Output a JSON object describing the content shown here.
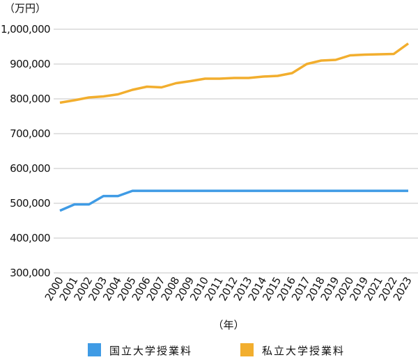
{
  "chart_data": {
    "type": "line",
    "unit_label": "（万円）",
    "xlabel": "（年）",
    "ylabel": "",
    "categories": [
      "2000",
      "2001",
      "2002",
      "2003",
      "2004",
      "2005",
      "2006",
      "2007",
      "2008",
      "2009",
      "2010",
      "2011",
      "2012",
      "2013",
      "2014",
      "2015",
      "2016",
      "2017",
      "2018",
      "2019",
      "2020",
      "2019",
      "2021",
      "2022",
      "2023"
    ],
    "ylim": [
      300000,
      1000000
    ],
    "yticks": [
      300000,
      400000,
      500000,
      600000,
      700000,
      800000,
      900000,
      1000000
    ],
    "ytick_labels": [
      "300,000",
      "400,000",
      "500,000",
      "600,000",
      "700,000",
      "800,000",
      "900,000",
      "1,000,000"
    ],
    "grid": true,
    "legend_position": "bottom",
    "series": [
      {
        "name": "国立大学授業料",
        "color": "#3f9be5",
        "values": [
          478800,
          496800,
          496800,
          520800,
          520800,
          535800,
          535800,
          535800,
          535800,
          535800,
          535800,
          535800,
          535800,
          535800,
          535800,
          535800,
          535800,
          535800,
          535800,
          535800,
          535800,
          535800,
          535800,
          535800,
          535800
        ]
      },
      {
        "name": "私立大学授業料",
        "color": "#f2ae2e",
        "values": [
          789000,
          796000,
          804000,
          807000,
          813000,
          826000,
          835000,
          833000,
          845000,
          851000,
          858000,
          858000,
          860000,
          860000,
          864000,
          866000,
          874000,
          900000,
          910000,
          912000,
          925000,
          927000,
          928000,
          929000,
          959000
        ]
      }
    ]
  }
}
